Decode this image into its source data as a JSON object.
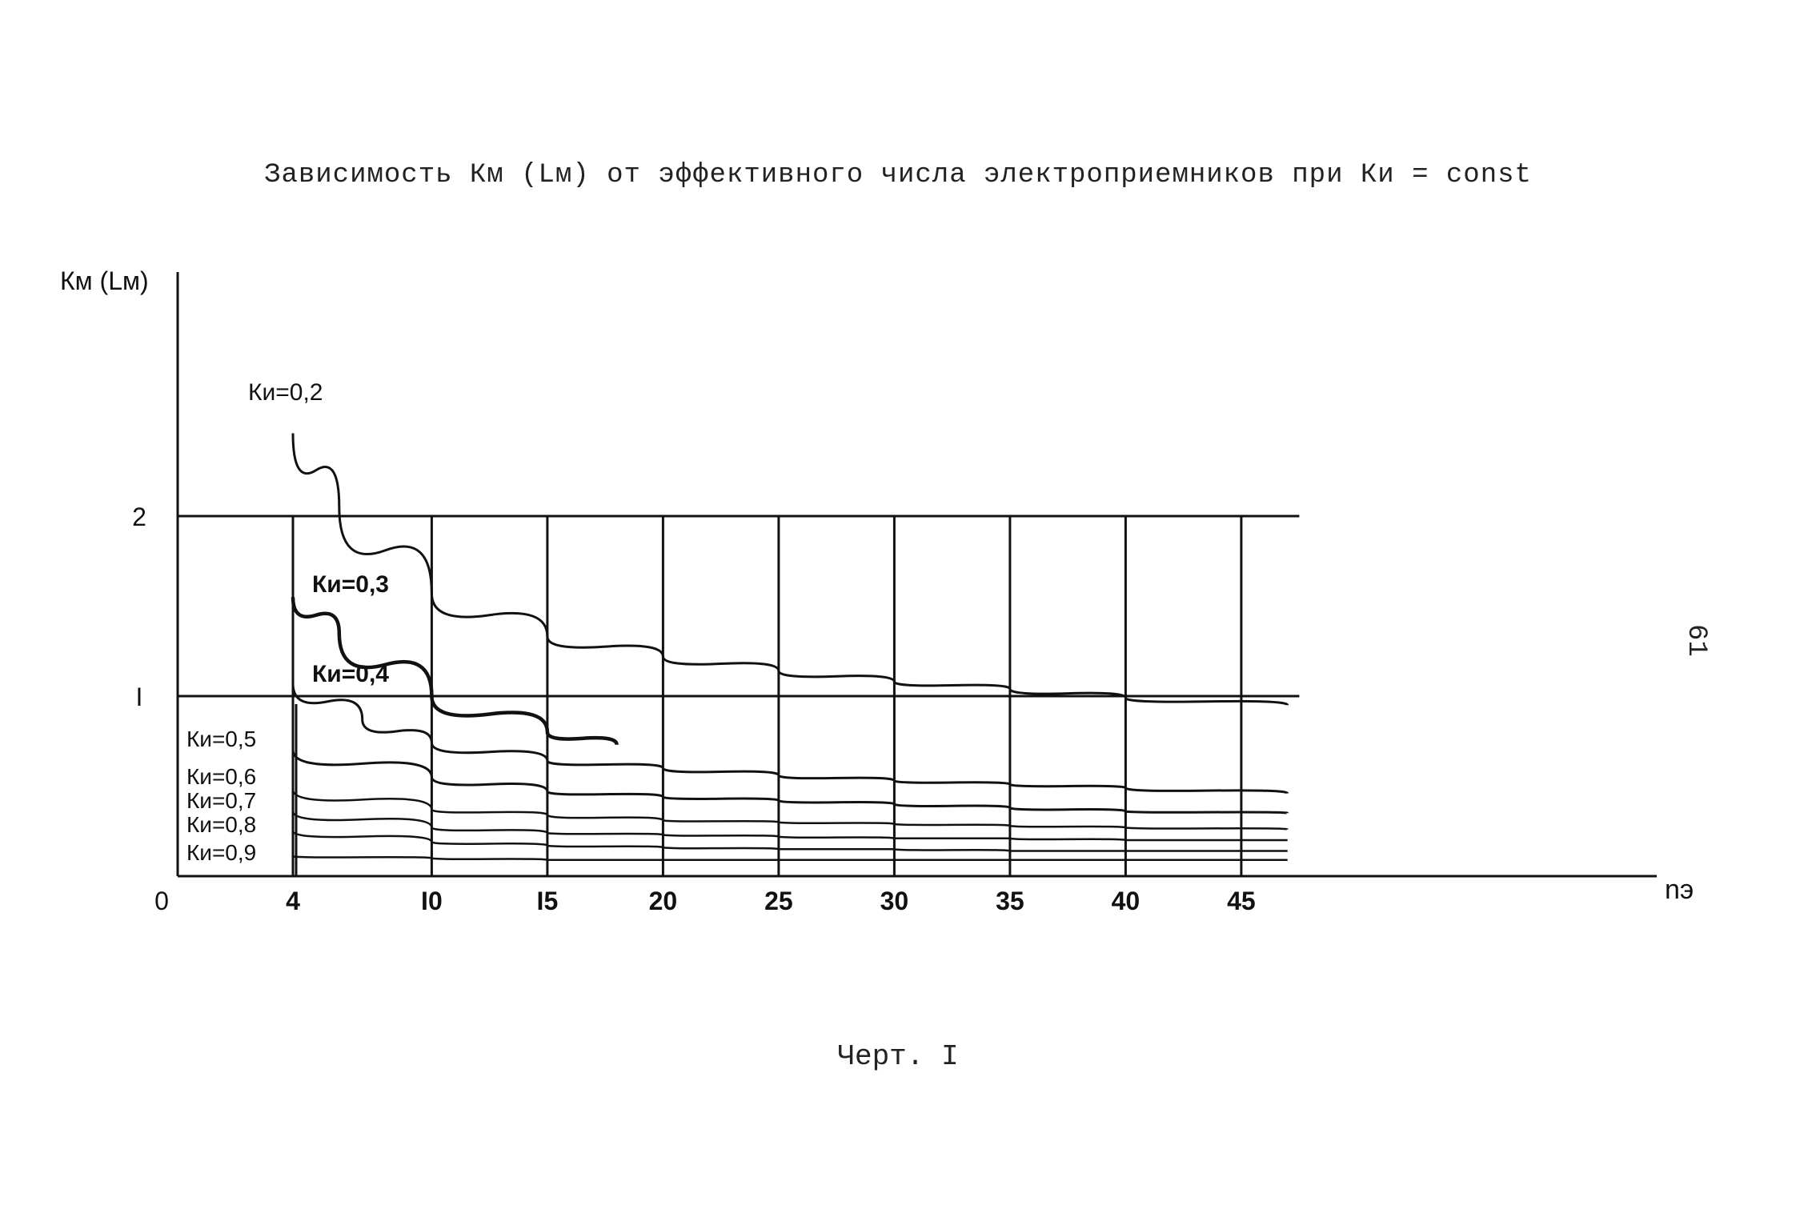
{
  "title": "Зависимость Км (Lм) от эффективного числа электроприемников при Ки = const",
  "caption": "Черт. I",
  "page_number": "61",
  "chart_data": {
    "type": "line",
    "title": "Зависимость Км (Lм) от эффективного числа электроприемников при Ки = const",
    "xlabel": "nэ",
    "ylabel": "Км (Lм)",
    "origin_label": "0",
    "x_ticks": [
      {
        "value": 4,
        "label": "4"
      },
      {
        "value": 10,
        "label": "I0"
      },
      {
        "value": 15,
        "label": "I5"
      },
      {
        "value": 20,
        "label": "20"
      },
      {
        "value": 25,
        "label": "25"
      },
      {
        "value": 30,
        "label": "30"
      },
      {
        "value": 35,
        "label": "35"
      },
      {
        "value": 40,
        "label": "40"
      },
      {
        "value": 45,
        "label": "45"
      }
    ],
    "y_ticks": [
      {
        "value": 1,
        "label": "I"
      },
      {
        "value": 2,
        "label": "2"
      }
    ],
    "xlim": [
      0,
      50
    ],
    "ylim": [
      0.0,
      3.2
    ],
    "grid": true,
    "series": [
      {
        "name": "Ки=0,2",
        "x": [
          4,
          6,
          10,
          15,
          20,
          25,
          30,
          35,
          40,
          47
        ],
        "y": [
          2.46,
          2.05,
          1.57,
          1.33,
          1.22,
          1.14,
          1.08,
          1.04,
          0.99,
          0.95
        ]
      },
      {
        "name": "Ки=0,3",
        "x": [
          4,
          6,
          10,
          15,
          18
        ],
        "y": [
          1.55,
          1.35,
          1.0,
          0.8,
          0.73
        ]
      },
      {
        "name": "Ки=0,4",
        "x": [
          4,
          7,
          10,
          15,
          20,
          25,
          30,
          35,
          40,
          47
        ],
        "y": [
          1.07,
          0.87,
          0.74,
          0.64,
          0.6,
          0.56,
          0.53,
          0.51,
          0.49,
          0.46
        ]
      },
      {
        "name": "Ки=0,5",
        "x": [
          4,
          10,
          15,
          20,
          25,
          30,
          35,
          40,
          47
        ],
        "y": [
          0.7,
          0.55,
          0.47,
          0.44,
          0.42,
          0.4,
          0.38,
          0.36,
          0.35
        ]
      },
      {
        "name": "Ки=0,6",
        "x": [
          4,
          10,
          15,
          20,
          25,
          30,
          35,
          40,
          47
        ],
        "y": [
          0.48,
          0.37,
          0.34,
          0.31,
          0.3,
          0.29,
          0.28,
          0.27,
          0.26
        ]
      },
      {
        "name": "Ки=0,7",
        "x": [
          4,
          10,
          15,
          20,
          25,
          30,
          35,
          40,
          47
        ],
        "y": [
          0.36,
          0.27,
          0.24,
          0.23,
          0.22,
          0.21,
          0.21,
          0.2,
          0.2
        ]
      },
      {
        "name": "Ки=0,8",
        "x": [
          4,
          10,
          15,
          20,
          25,
          30,
          35,
          40,
          47
        ],
        "y": [
          0.25,
          0.19,
          0.17,
          0.16,
          0.15,
          0.15,
          0.14,
          0.14,
          0.14
        ]
      },
      {
        "name": "Ки=0,9",
        "x": [
          4,
          10,
          15,
          20,
          25,
          30,
          35,
          40,
          47
        ],
        "y": [
          0.11,
          0.1,
          0.09,
          0.09,
          0.09,
          0.09,
          0.09,
          0.09,
          0.09
        ]
      }
    ]
  }
}
